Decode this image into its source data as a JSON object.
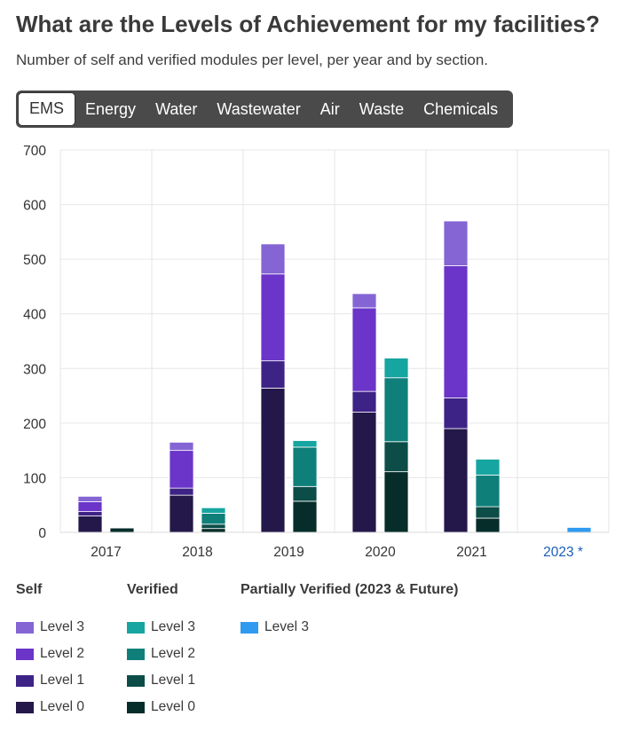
{
  "header": {
    "title": "What are the Levels of Achievement for my facilities?",
    "subtitle": "Number of self and verified modules per level, per year and by section."
  },
  "tabs": [
    {
      "label": "EMS",
      "active": true
    },
    {
      "label": "Energy",
      "active": false
    },
    {
      "label": "Water",
      "active": false
    },
    {
      "label": "Wastewater",
      "active": false
    },
    {
      "label": "Air",
      "active": false
    },
    {
      "label": "Waste",
      "active": false
    },
    {
      "label": "Chemicals",
      "active": false
    }
  ],
  "colors": {
    "self": [
      "#24184a",
      "#3e2386",
      "#6a35c8",
      "#8565d4"
    ],
    "verified": [
      "#062d2a",
      "#0c4d48",
      "#0f7f7a",
      "#16a5a1"
    ],
    "partial": "#2e9af0",
    "future_tick": "#1a5fb4"
  },
  "chart_data": {
    "type": "bar",
    "stacked": true,
    "categories": [
      "2017",
      "2018",
      "2019",
      "2020",
      "2021",
      "2023 *"
    ],
    "ylim": [
      0,
      700
    ],
    "yticks": [
      0,
      100,
      200,
      300,
      400,
      500,
      600,
      700
    ],
    "grid": true,
    "groups": [
      {
        "name": "Self",
        "stack": "self",
        "series": [
          {
            "name": "Level 0",
            "values": [
              30,
              68,
              264,
              220,
              190,
              0
            ]
          },
          {
            "name": "Level 1",
            "values": [
              8,
              13,
              50,
              38,
              56,
              0
            ]
          },
          {
            "name": "Level 2",
            "values": [
              18,
              69,
              159,
              153,
              242,
              0
            ]
          },
          {
            "name": "Level 3",
            "values": [
              10,
              15,
              55,
              26,
              82,
              0
            ]
          }
        ]
      },
      {
        "name": "Verified",
        "stack": "verified",
        "series": [
          {
            "name": "Level 0",
            "values": [
              8,
              7,
              57,
              111,
              26,
              0
            ]
          },
          {
            "name": "Level 1",
            "values": [
              0,
              8,
              27,
              55,
              21,
              0
            ]
          },
          {
            "name": "Level 2",
            "values": [
              0,
              20,
              72,
              117,
              58,
              0
            ]
          },
          {
            "name": "Level 3",
            "values": [
              0,
              10,
              12,
              36,
              29,
              0
            ]
          }
        ]
      },
      {
        "name": "Partially Verified (2023 & Future)",
        "stack": "partial",
        "series": [
          {
            "name": "Level 3",
            "values": [
              0,
              0,
              0,
              0,
              0,
              9
            ]
          }
        ]
      }
    ]
  },
  "legend": {
    "self": {
      "title": "Self",
      "items": [
        "Level 3",
        "Level 2",
        "Level 1",
        "Level 0"
      ]
    },
    "verified": {
      "title": "Verified",
      "items": [
        "Level 3",
        "Level 2",
        "Level 1",
        "Level 0"
      ]
    },
    "partial": {
      "title": "Partially Verified (2023 & Future)",
      "items": [
        "Level 3"
      ]
    }
  }
}
